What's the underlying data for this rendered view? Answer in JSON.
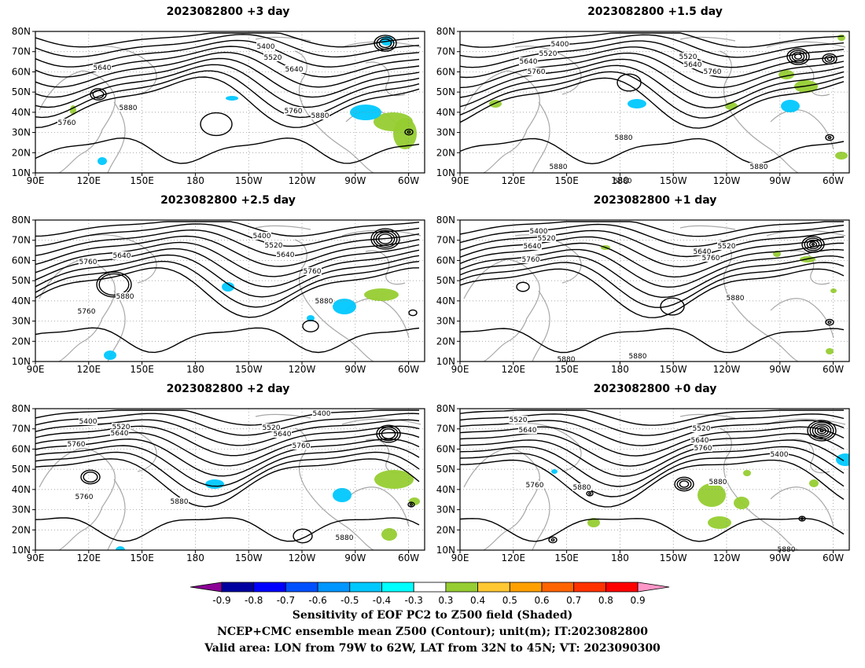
{
  "panels": [
    {
      "title": "2023082800 +3 day",
      "contour_labels": [
        [
          "5400",
          "1"
        ],
        [
          "5520",
          "2"
        ],
        [
          "5640",
          "3"
        ],
        [
          "5640",
          "4"
        ],
        [
          "5760",
          "5"
        ],
        [
          "5880",
          "6"
        ],
        [
          "5760",
          "7"
        ],
        [
          "5880",
          "8"
        ]
      ]
    },
    {
      "title": "2023082800 +1.5 day",
      "contour_labels": [
        [
          "5400",
          "1"
        ],
        [
          "5520",
          "2"
        ],
        [
          "5640",
          "3"
        ],
        [
          "5760",
          "4"
        ],
        [
          "5520",
          "5"
        ],
        [
          "5640",
          "6"
        ],
        [
          "5760",
          "7"
        ],
        [
          "5880",
          "8"
        ],
        [
          "5880",
          "9"
        ],
        [
          "5880",
          "10"
        ],
        [
          "5880",
          "11"
        ]
      ]
    },
    {
      "title": "2023082800 +2.5 day",
      "contour_labels": [
        [
          "5400",
          "1"
        ],
        [
          "5520",
          "2"
        ],
        [
          "5640",
          "3"
        ],
        [
          "5640",
          "4"
        ],
        [
          "5760",
          "5"
        ],
        [
          "5760",
          "6"
        ],
        [
          "5880",
          "7"
        ],
        [
          "5760",
          "8"
        ],
        [
          "5880",
          "9"
        ]
      ]
    },
    {
      "title": "2023082800 +1 day",
      "contour_labels": [
        [
          "5400",
          "1"
        ],
        [
          "5520",
          "2"
        ],
        [
          "5640",
          "3"
        ],
        [
          "5760",
          "4"
        ],
        [
          "5520",
          "5"
        ],
        [
          "5640",
          "6"
        ],
        [
          "5760",
          "7"
        ],
        [
          "5880",
          "8"
        ],
        [
          "5880",
          "9"
        ],
        [
          "5880",
          "10"
        ]
      ]
    },
    {
      "title": "2023082800 +2 day",
      "contour_labels": [
        [
          "5400",
          "1"
        ],
        [
          "5520",
          "2"
        ],
        [
          "5640",
          "3"
        ],
        [
          "5760",
          "4"
        ],
        [
          "5400",
          "5"
        ],
        [
          "5520",
          "6"
        ],
        [
          "5640",
          "7"
        ],
        [
          "5760",
          "8"
        ],
        [
          "5760",
          "9"
        ],
        [
          "5880",
          "10"
        ],
        [
          "5880",
          "11"
        ]
      ]
    },
    {
      "title": "2023082800 +0 day",
      "contour_labels": [
        [
          "5520",
          "1"
        ],
        [
          "5640",
          "2"
        ],
        [
          "5520",
          "3"
        ],
        [
          "5640",
          "4"
        ],
        [
          "5760",
          "5"
        ],
        [
          "5400",
          "6"
        ],
        [
          "5760",
          "7"
        ],
        [
          "5880",
          "8"
        ],
        [
          "5880",
          "9"
        ],
        [
          "5880",
          "10"
        ]
      ]
    }
  ],
  "lat_ticks": [
    "80N",
    "70N",
    "60N",
    "50N",
    "40N",
    "30N",
    "20N",
    "10N"
  ],
  "lon_ticks": [
    "90E",
    "120E",
    "150E",
    "180",
    "150W",
    "120W",
    "90W",
    "60W"
  ],
  "colorbar": {
    "ticks": [
      "-0.9",
      "-0.8",
      "-0.7",
      "-0.6",
      "-0.5",
      "-0.4",
      "-0.3",
      "0.3",
      "0.4",
      "0.5",
      "0.6",
      "0.7",
      "0.8",
      "0.9"
    ],
    "colors": [
      "#8c0096",
      "#0000a0",
      "#0000ff",
      "#0050ff",
      "#0096ff",
      "#00c8ff",
      "#00ffff",
      "#ffffff",
      "#96cd32",
      "#ffc832",
      "#ffa000",
      "#ff6400",
      "#ff3200",
      "#ff0000",
      "#ff96c8"
    ]
  },
  "captions": [
    "Sensitivity of EOF PC2 to Z500 field (Shaded)",
    "NCEP+CMC ensemble mean Z500 (Contour); unit(m); IT:2023082800",
    "Valid area: LON from 79W to 62W, LAT from 32N to 45N; VT: 2023090300"
  ],
  "colors": {
    "contour": "#000000",
    "coast": "#a8a8a8",
    "grid": "#888888",
    "positive": "#96cd32",
    "positive_high": "#ffc832",
    "negative": "#00c8ff"
  }
}
